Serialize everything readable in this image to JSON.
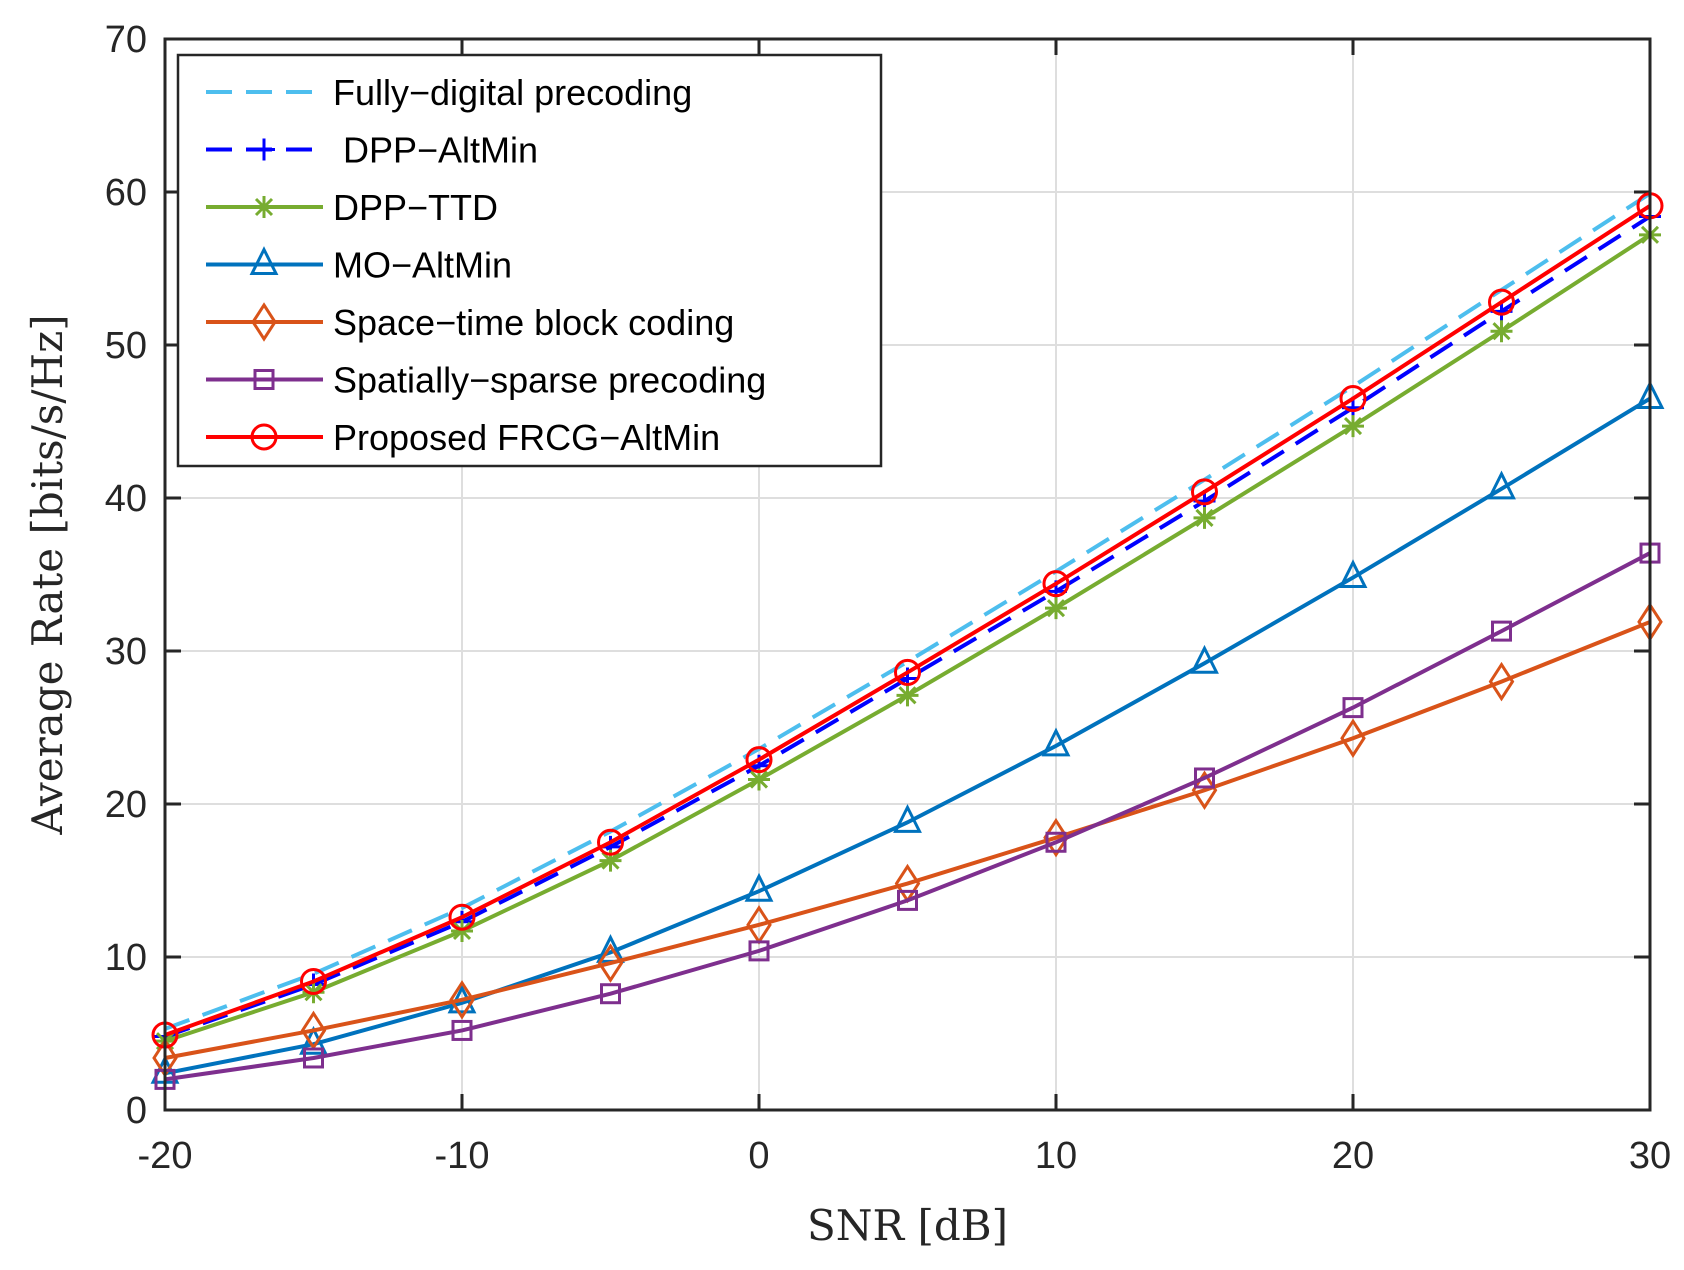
{
  "chart_data": {
    "type": "line",
    "title": "",
    "xlabel": "SNR [dB]",
    "ylabel": "Average Rate [bits/s/Hz]",
    "xlim": [
      -20,
      30
    ],
    "ylim": [
      0,
      70
    ],
    "xticks": [
      -20,
      -10,
      0,
      10,
      20,
      30
    ],
    "yticks": [
      0,
      10,
      20,
      30,
      40,
      50,
      60,
      70
    ],
    "grid": true,
    "legend_position": "top-left",
    "x": [
      -20,
      -15,
      -10,
      -5,
      0,
      5,
      10,
      15,
      20,
      25,
      30
    ],
    "series": [
      {
        "name": "Fully−digital precoding",
        "color": "#4DBEEE",
        "dash": true,
        "marker": "none",
        "values": [
          5.3,
          8.9,
          13.2,
          18.2,
          23.6,
          29.3,
          35.2,
          41.2,
          47.3,
          53.6,
          59.9
        ]
      },
      {
        "name": " DPP−AltMin",
        "color": "#0000FF",
        "dash": true,
        "marker": "plus",
        "values": [
          4.8,
          8.2,
          12.3,
          17.2,
          22.5,
          28.2,
          33.9,
          39.8,
          45.9,
          52.2,
          58.4
        ]
      },
      {
        "name": "DPP−TTD",
        "color": "#77AC30",
        "dash": false,
        "marker": "star",
        "values": [
          4.5,
          7.7,
          11.7,
          16.3,
          21.6,
          27.1,
          32.8,
          38.7,
          44.7,
          50.9,
          57.2
        ]
      },
      {
        "name": "MO−AltMin",
        "color": "#0072BD",
        "dash": false,
        "marker": "triangle",
        "values": [
          2.4,
          4.3,
          7.0,
          10.3,
          14.3,
          18.8,
          23.8,
          29.2,
          34.8,
          40.6,
          46.5
        ]
      },
      {
        "name": "Space−time block coding",
        "color": "#D95319",
        "dash": false,
        "marker": "diamond",
        "values": [
          3.4,
          5.2,
          7.2,
          9.6,
          12.1,
          14.8,
          17.8,
          20.9,
          24.3,
          28.0,
          31.9
        ]
      },
      {
        "name": "Spatially−sparse precoding",
        "color": "#7E2F8E",
        "dash": false,
        "marker": "square",
        "values": [
          2.0,
          3.4,
          5.2,
          7.6,
          10.4,
          13.7,
          17.5,
          21.7,
          26.3,
          31.3,
          36.4
        ]
      },
      {
        "name": "Proposed FRCG−AltMin",
        "color": "#FF0000",
        "dash": false,
        "marker": "circle",
        "values": [
          4.9,
          8.4,
          12.6,
          17.5,
          22.9,
          28.6,
          34.4,
          40.4,
          46.5,
          52.8,
          59.1
        ]
      }
    ]
  }
}
